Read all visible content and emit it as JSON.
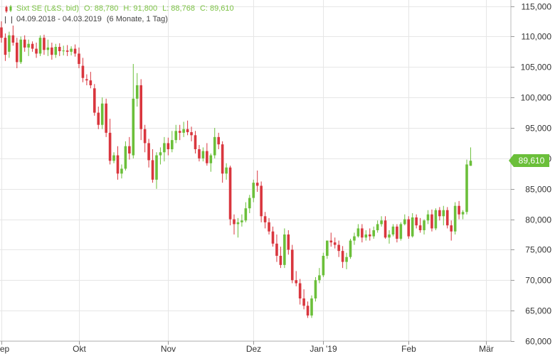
{
  "legend": {
    "instrument": "Sixt SE (L&S, bid)",
    "open": "O: 88,780",
    "high": "H: 91,800",
    "low": "L: 88,768",
    "close": "C: 89,610",
    "range": "04.09.2018 - 04.03.2019",
    "period": "(6 Monate, 1 Tag)"
  },
  "last_price_label": "89,610",
  "colors": {
    "up": "#6bbf3a",
    "down": "#d9363e",
    "legend": "#7cc245",
    "grid": "#e6e6e6"
  },
  "chart_data": {
    "type": "candlestick",
    "title": "Sixt SE (L&S, bid)",
    "ylim": [
      60000,
      116000
    ],
    "y_ticks": [
      {
        "value": 115000,
        "label": "115,000"
      },
      {
        "value": 110000,
        "label": "110,000"
      },
      {
        "value": 105000,
        "label": "105,000"
      },
      {
        "value": 100000,
        "label": "100,000"
      },
      {
        "value": 95000,
        "label": "95,000"
      },
      {
        "value": 90000,
        "label": "90,000"
      },
      {
        "value": 85000,
        "label": "85,000"
      },
      {
        "value": 80000,
        "label": "80,000"
      },
      {
        "value": 75000,
        "label": "75,000"
      },
      {
        "value": 70000,
        "label": "70,000"
      },
      {
        "value": 65000,
        "label": "65,000"
      },
      {
        "value": 60000,
        "label": "60,000"
      }
    ],
    "x_ticks": [
      {
        "index": 0,
        "label": "Sep"
      },
      {
        "index": 20,
        "label": "Okt"
      },
      {
        "index": 43,
        "label": "Nov"
      },
      {
        "index": 65,
        "label": "Dez"
      },
      {
        "index": 83,
        "label": "Jan '19"
      },
      {
        "index": 105,
        "label": "Feb"
      },
      {
        "index": 125,
        "label": "Mär"
      }
    ],
    "last_value": 89610,
    "ohlc": [
      [
        111500,
        112500,
        109000,
        109800
      ],
      [
        109800,
        110500,
        106000,
        107000
      ],
      [
        107500,
        110800,
        106500,
        110200
      ],
      [
        110200,
        111800,
        108500,
        109000
      ],
      [
        109000,
        109800,
        104800,
        105800
      ],
      [
        105800,
        110000,
        105500,
        109500
      ],
      [
        109500,
        110200,
        107500,
        108200
      ],
      [
        108200,
        109500,
        106800,
        108800
      ],
      [
        108800,
        109200,
        107500,
        108000
      ],
      [
        108000,
        109000,
        106500,
        107200
      ],
      [
        107200,
        110200,
        106800,
        109800
      ],
      [
        109800,
        110300,
        107000,
        107800
      ],
      [
        107800,
        109500,
        106800,
        108200
      ],
      [
        108200,
        109000,
        106200,
        107000
      ],
      [
        107000,
        108800,
        106500,
        108300
      ],
      [
        108300,
        108900,
        106800,
        107600
      ],
      [
        107600,
        108500,
        106900,
        107700
      ],
      [
        107700,
        108600,
        106800,
        107500
      ],
      [
        107500,
        108400,
        106900,
        108000
      ],
      [
        108000,
        108700,
        106700,
        107200
      ],
      [
        107200,
        108200,
        104800,
        105500
      ],
      [
        105200,
        106500,
        102500,
        103200
      ],
      [
        103000,
        103800,
        102000,
        102800
      ],
      [
        102800,
        104200,
        101500,
        102000
      ],
      [
        101500,
        102200,
        97000,
        97500
      ],
      [
        97500,
        98500,
        94800,
        95500
      ],
      [
        95500,
        100000,
        94800,
        99000
      ],
      [
        99000,
        99800,
        93500,
        94200
      ],
      [
        94200,
        96500,
        89000,
        89600
      ],
      [
        89600,
        91000,
        89200,
        90500
      ],
      [
        90500,
        92000,
        86500,
        87500
      ],
      [
        87500,
        89000,
        86700,
        88300
      ],
      [
        88300,
        92800,
        88000,
        92000
      ],
      [
        92000,
        93500,
        89800,
        90800
      ],
      [
        90500,
        105500,
        90000,
        99800
      ],
      [
        99800,
        104000,
        98500,
        102000
      ],
      [
        102000,
        103000,
        93000,
        94800
      ],
      [
        94800,
        95500,
        91000,
        92500
      ],
      [
        92500,
        93200,
        88500,
        89700
      ],
      [
        89700,
        91500,
        86000,
        86500
      ],
      [
        86500,
        91000,
        85000,
        90500
      ],
      [
        90500,
        91800,
        89000,
        91000
      ],
      [
        91000,
        93500,
        89500,
        92500
      ],
      [
        92500,
        93400,
        90500,
        91500
      ],
      [
        91500,
        94500,
        91000,
        93000
      ],
      [
        93000,
        95500,
        92500,
        94500
      ],
      [
        94500,
        95500,
        93000,
        94200
      ],
      [
        94200,
        96000,
        93500,
        94800
      ],
      [
        94800,
        96200,
        93800,
        94300
      ],
      [
        94300,
        95200,
        92800,
        93800
      ],
      [
        93800,
        94500,
        90800,
        91500
      ],
      [
        91500,
        92200,
        89500,
        90000
      ],
      [
        90000,
        91800,
        89500,
        91200
      ],
      [
        91200,
        92500,
        88800,
        89200
      ],
      [
        89200,
        90800,
        87800,
        90500
      ],
      [
        90500,
        95000,
        90000,
        93500
      ],
      [
        93500,
        94200,
        91500,
        92300
      ],
      [
        92300,
        92800,
        86000,
        87500
      ],
      [
        87500,
        89200,
        86500,
        88500
      ],
      [
        88500,
        88800,
        79000,
        80000
      ],
      [
        80000,
        80800,
        77500,
        79200
      ],
      [
        79200,
        80200,
        77000,
        79500
      ],
      [
        79500,
        80800,
        78800,
        79800
      ],
      [
        79800,
        82800,
        79500,
        81800
      ],
      [
        81800,
        84000,
        81000,
        83500
      ],
      [
        83500,
        86500,
        82800,
        86000
      ],
      [
        86000,
        88000,
        84500,
        85500
      ],
      [
        85500,
        86200,
        79500,
        80500
      ],
      [
        80500,
        81200,
        78500,
        79500
      ],
      [
        79500,
        80200,
        77500,
        78000
      ],
      [
        78000,
        78800,
        75500,
        76000
      ],
      [
        76000,
        77500,
        73000,
        74000
      ],
      [
        74000,
        75500,
        72000,
        72500
      ],
      [
        72500,
        78500,
        72000,
        77500
      ],
      [
        77500,
        78200,
        74200,
        75000
      ],
      [
        75000,
        75800,
        69500,
        70000
      ],
      [
        70000,
        71500,
        69000,
        69500
      ],
      [
        69500,
        70200,
        66000,
        67000
      ],
      [
        67000,
        68500,
        65200,
        65800
      ],
      [
        65800,
        66500,
        63800,
        64200
      ],
      [
        64200,
        67500,
        63800,
        67000
      ],
      [
        67000,
        70500,
        66500,
        70000
      ],
      [
        70000,
        72000,
        69500,
        70800
      ],
      [
        70800,
        74500,
        70500,
        74000
      ],
      [
        74000,
        76500,
        73500,
        76500
      ],
      [
        76500,
        77800,
        75500,
        76200
      ],
      [
        76200,
        77000,
        75200,
        75800
      ],
      [
        75800,
        76500,
        73800,
        74800
      ],
      [
        74800,
        75600,
        72000,
        73000
      ],
      [
        73000,
        74500,
        71800,
        73800
      ],
      [
        73800,
        76800,
        73500,
        76500
      ],
      [
        76500,
        77800,
        75800,
        77200
      ],
      [
        77200,
        79200,
        77000,
        78500
      ],
      [
        78500,
        79200,
        76200,
        77000
      ],
      [
        77000,
        78200,
        76500,
        77500
      ],
      [
        77500,
        78500,
        76500,
        77200
      ],
      [
        77200,
        78800,
        76800,
        78200
      ],
      [
        78200,
        79800,
        77800,
        79200
      ],
      [
        79200,
        80500,
        78800,
        79800
      ],
      [
        79800,
        80500,
        76800,
        77000
      ],
      [
        77000,
        78200,
        76000,
        77500
      ],
      [
        77500,
        79200,
        77200,
        78800
      ],
      [
        78800,
        79200,
        76200,
        76800
      ],
      [
        76800,
        79500,
        76500,
        79200
      ],
      [
        79200,
        80800,
        79000,
        80000
      ],
      [
        80000,
        80500,
        76800,
        77200
      ],
      [
        77200,
        81000,
        77000,
        80300
      ],
      [
        80300,
        80800,
        78500,
        79000
      ],
      [
        79000,
        80200,
        77800,
        78200
      ],
      [
        78200,
        80000,
        77500,
        79800
      ],
      [
        79800,
        81500,
        79200,
        80800
      ],
      [
        80800,
        81600,
        78000,
        78500
      ],
      [
        78500,
        81800,
        78200,
        81500
      ],
      [
        81500,
        82000,
        79800,
        80500
      ],
      [
        80500,
        82200,
        79000,
        81500
      ],
      [
        81500,
        82000,
        78500,
        79000
      ],
      [
        79000,
        79800,
        76500,
        78000
      ],
      [
        78000,
        82800,
        77500,
        82200
      ],
      [
        82200,
        83000,
        80000,
        80800
      ],
      [
        80800,
        81500,
        80000,
        81200
      ],
      [
        81200,
        89800,
        80800,
        89000
      ],
      [
        88780,
        91800,
        88768,
        89610
      ]
    ]
  },
  "axis": {
    "y_labels": [
      "115,000",
      "110,000",
      "105,000",
      "100,000",
      "95,000",
      "90,000",
      "85,000",
      "80,000",
      "75,000",
      "70,000",
      "65,000",
      "60,000"
    ],
    "x_labels": [
      "Sep",
      "Okt",
      "Nov",
      "Dez",
      "Jan '19",
      "Feb",
      "Mär"
    ]
  }
}
